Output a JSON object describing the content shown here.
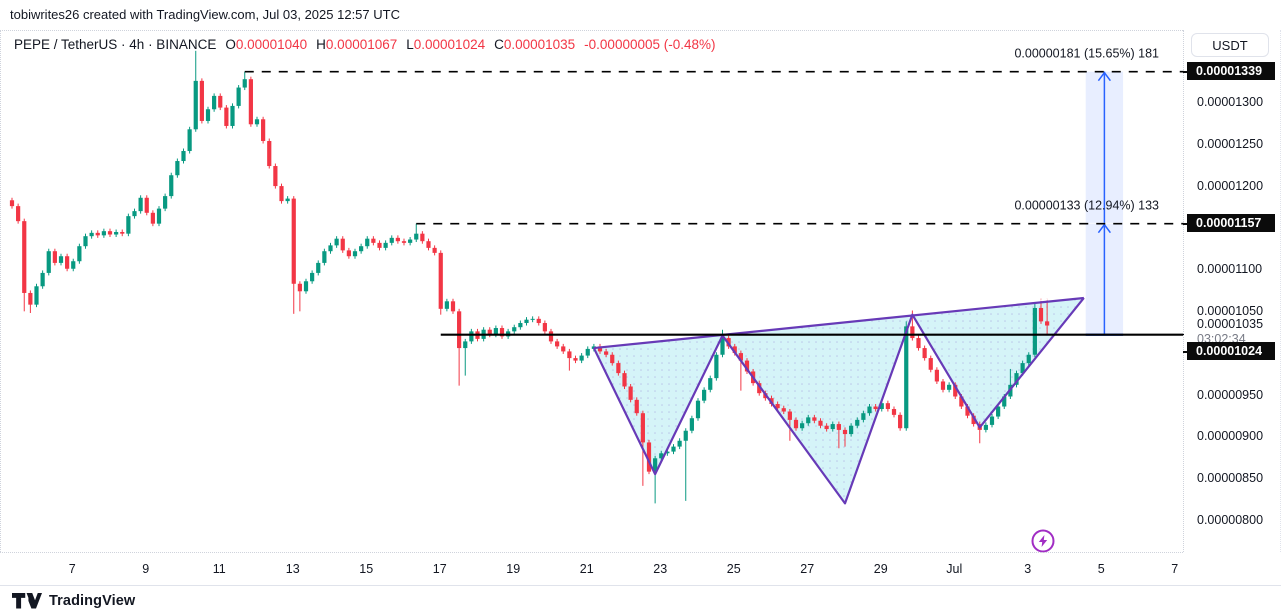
{
  "watermark": "tobiwrites26 created with TradingView.com, Jul 03, 2025 12:57 UTC",
  "header": {
    "symbol_line": "PEPE / TetherUS · 4h · BINANCE",
    "ohlc": [
      {
        "k": "O",
        "v": "0.00001040"
      },
      {
        "k": "H",
        "v": "0.00001067"
      },
      {
        "k": "L",
        "v": "0.00001024"
      },
      {
        "k": "C",
        "v": "0.00001035"
      }
    ],
    "change": "-0.00000005 (-0.48%)"
  },
  "axis": {
    "currency": "USDT",
    "price_ticks": [
      {
        "label": "0.00001300",
        "p": 1300
      },
      {
        "label": "0.00001250",
        "p": 1250
      },
      {
        "label": "0.00001200",
        "p": 1200
      },
      {
        "label": "0.00001100",
        "p": 1100
      },
      {
        "label": "0.00001050",
        "p": 1050
      },
      {
        "label": "0.00000950",
        "p": 950
      },
      {
        "label": "0.00000900",
        "p": 900
      },
      {
        "label": "0.00000850",
        "p": 850
      },
      {
        "label": "0.00000800",
        "p": 800
      }
    ],
    "badges": [
      {
        "label": "0.00001339",
        "p": 1339
      },
      {
        "label": "0.00001157",
        "p": 1157
      },
      {
        "label": "0.00001024",
        "p": 1024,
        "display_offset": 17
      }
    ],
    "current": {
      "label": "0.00001035",
      "p": 1035,
      "countdown": "03:02:34"
    }
  },
  "time_ticks": [
    {
      "label": "7",
      "i": 10
    },
    {
      "label": "9",
      "i": 22
    },
    {
      "label": "11",
      "i": 34
    },
    {
      "label": "13",
      "i": 46
    },
    {
      "label": "15",
      "i": 58
    },
    {
      "label": "17",
      "i": 70
    },
    {
      "label": "19",
      "i": 82
    },
    {
      "label": "21",
      "i": 94
    },
    {
      "label": "23",
      "i": 106
    },
    {
      "label": "25",
      "i": 118
    },
    {
      "label": "27",
      "i": 130
    },
    {
      "label": "29",
      "i": 142
    },
    {
      "label": "Jul",
      "i": 154
    },
    {
      "label": "3",
      "i": 166
    },
    {
      "label": "5",
      "i": 178
    },
    {
      "label": "7",
      "i": 190
    }
  ],
  "chart_data": {
    "type": "candlestick",
    "title": "PEPE / TetherUS",
    "interval": "4h",
    "exchange": "BINANCE",
    "price_unit": "1e-8 USDT",
    "ylim": [
      7.63e-06,
      1.387e-05
    ],
    "x_range_days": "Jun 5 - Jul 7",
    "first_open": 1185,
    "closes": [
      1178,
      1160,
      1074,
      1060,
      1082,
      1098,
      1124,
      1110,
      1118,
      1103,
      1112,
      1130,
      1142,
      1146,
      1143,
      1148,
      1144,
      1147,
      1145,
      1166,
      1172,
      1188,
      1170,
      1157,
      1175,
      1190,
      1215,
      1232,
      1244,
      1270,
      1328,
      1280,
      1294,
      1310,
      1296,
      1274,
      1298,
      1320,
      1330,
      1276,
      1282,
      1256,
      1226,
      1202,
      1184,
      1187,
      1085,
      1076,
      1088,
      1098,
      1110,
      1124,
      1131,
      1139,
      1125,
      1118,
      1124,
      1130,
      1139,
      1134,
      1128,
      1134,
      1140,
      1136,
      1134,
      1138,
      1145,
      1136,
      1128,
      1122,
      1055,
      1064,
      1052,
      1008,
      1016,
      1028,
      1019,
      1030,
      1024,
      1032,
      1022,
      1028,
      1033,
      1038,
      1042,
      1043,
      1038,
      1028,
      1016,
      1010,
      1004,
      996,
      993,
      999,
      1007,
      1010,
      1004,
      1000,
      990,
      978,
      962,
      946,
      930,
      895,
      860,
      876,
      882,
      884,
      890,
      897,
      909,
      924,
      945,
      958,
      972,
      1000,
      1020,
      1010,
      1002,
      993,
      980,
      966,
      954,
      948,
      941,
      936,
      932,
      922,
      912,
      918,
      925,
      921,
      915,
      911,
      917,
      910,
      905,
      915,
      922,
      930,
      938,
      935,
      942,
      935,
      928,
      912,
      1034,
      1020,
      1008,
      996,
      982,
      968,
      958,
      964,
      950,
      938,
      927,
      917,
      910,
      916,
      926,
      938,
      950,
      964,
      978,
      990,
      1000,
      1056,
      1040,
      1035
    ],
    "wick_overrides": {
      "2": {
        "lo": 1052
      },
      "3": {
        "lo": 1050
      },
      "30": {
        "hi": 1364
      },
      "38": {
        "hi": 1339
      },
      "46": {
        "lo": 1049
      },
      "47": {
        "lo": 1052
      },
      "66": {
        "hi": 1157
      },
      "70": {
        "lo": 1048
      },
      "73": {
        "lo": 963
      },
      "74": {
        "lo": 975
      },
      "91": {
        "lo": 981
      },
      "103": {
        "lo": 843
      },
      "105": {
        "lo": 822
      },
      "110": {
        "lo": 825
      },
      "116": {
        "hi": 1030
      },
      "119": {
        "lo": 957
      },
      "127": {
        "lo": 897
      },
      "135": {
        "lo": 888
      },
      "136": {
        "lo": 890
      },
      "146": {
        "hi": 1040
      },
      "147": {
        "hi": 1053
      },
      "158": {
        "lo": 894
      },
      "163": {
        "hi": 983
      },
      "167": {
        "hi": 1062
      },
      "168": {
        "hi": 1067
      },
      "169": {
        "hi": 1067,
        "lo": 1024
      }
    },
    "pattern": {
      "type": "inverse-head-and-shoulders",
      "points": [
        {
          "i": 95,
          "p": 1008
        },
        {
          "i": 105,
          "p": 857
        },
        {
          "i": 116,
          "p": 1023
        },
        {
          "i": 136,
          "p": 822
        },
        {
          "i": 147,
          "p": 1048
        },
        {
          "i": 158,
          "p": 913
        },
        {
          "i": 175,
          "p": 1068
        }
      ],
      "neckline_dotted": [
        {
          "i": 116,
          "p": 1023
        },
        {
          "i": 175,
          "p": 1071
        }
      ]
    },
    "rays": [
      {
        "style": "dashed",
        "p": 1339,
        "from_i": 38
      },
      {
        "style": "dashed",
        "p": 1157,
        "from_i": 66
      },
      {
        "style": "solid",
        "p": 1024,
        "from_i": 70
      }
    ],
    "measurements": [
      {
        "from_p": 1158,
        "to_p": 1339,
        "from_i": 175.3,
        "to_i": 181.4,
        "label": "0.00000181 (15.65%) 181"
      },
      {
        "from_p": 1024,
        "to_p": 1157,
        "from_i": 175.3,
        "to_i": 181.4,
        "label": "0.00000133 (12.94%) 133"
      }
    ],
    "icons": [
      {
        "name": "lightning-boost-icon",
        "i": 168,
        "p_y_page": 540
      }
    ]
  },
  "colors": {
    "up": "#089981",
    "down": "#f23645",
    "pattern_line": "#673ab7",
    "pattern_fill": "#b2ebf2",
    "measure_blue": "#2962ff",
    "ray_black": "#000000",
    "text": "#131722",
    "muted": "#787b86",
    "badge_bg": "#0b0b0b",
    "brand_purple": "#a12dc4"
  },
  "footer": {
    "brand": "TradingView"
  }
}
